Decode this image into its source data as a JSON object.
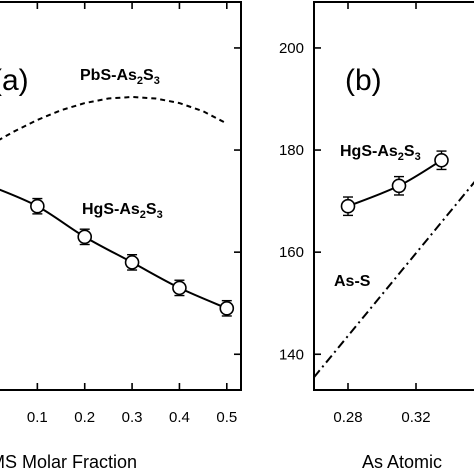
{
  "chart_data": [
    {
      "type": "line",
      "panel_label": "(a)",
      "xlabel": "MS Molar Fraction",
      "ylabel": "",
      "x_ticks": [
        0.1,
        0.2,
        0.3,
        0.4,
        0.5
      ],
      "x_tick_labels": [
        "0.1",
        "0.2",
        "0.3",
        "0.4",
        "0.5"
      ],
      "xlim": [
        0.0,
        0.53
      ],
      "ylim": [
        133,
        209
      ],
      "grid": false,
      "series": [
        {
          "name": "PbS-As2S3",
          "label_main": "PbS-As",
          "label_sub1": "2",
          "label_mid": "S",
          "label_sub2": "3",
          "style": "dashed",
          "markers": false,
          "x": [
            0.0,
            0.05,
            0.1,
            0.15,
            0.2,
            0.25,
            0.3,
            0.35,
            0.4,
            0.45,
            0.5
          ],
          "y": [
            181,
            183.6,
            185.9,
            187.8,
            189.2,
            190.1,
            190.4,
            190.1,
            189.2,
            187.6,
            185.2
          ]
        },
        {
          "name": "HgS-As2S3",
          "label_main": "HgS-As",
          "label_sub1": "2",
          "label_mid": "S",
          "label_sub2": "3",
          "style": "solid",
          "markers": true,
          "x": [
            0.0,
            0.1,
            0.2,
            0.3,
            0.4,
            0.5
          ],
          "y": [
            173,
            169,
            163,
            158,
            153,
            149
          ],
          "error": [
            1.5,
            1.5,
            1.5,
            1.5,
            1.5,
            1.5
          ]
        }
      ]
    },
    {
      "type": "line",
      "panel_label": "(b)",
      "xlabel": "As Atomic",
      "ylabel": "",
      "x_ticks": [
        0.28,
        0.32
      ],
      "x_tick_labels": [
        "0.28",
        "0.32"
      ],
      "y_ticks": [
        140,
        160,
        180,
        200
      ],
      "y_tick_labels": [
        "140",
        "160",
        "180",
        "200"
      ],
      "xlim": [
        0.26,
        0.36
      ],
      "ylim": [
        133,
        209
      ],
      "grid": false,
      "series": [
        {
          "name": "HgS-As2S3",
          "label_main": "HgS-As",
          "label_sub1": "2",
          "label_mid": "S",
          "label_sub2": "3",
          "style": "solid",
          "markers": true,
          "x": [
            0.28,
            0.31,
            0.335
          ],
          "y": [
            169,
            173,
            178
          ],
          "error": [
            1.8,
            1.8,
            1.8
          ]
        },
        {
          "name": "As-S",
          "label_main": "As-S",
          "style": "dashdot",
          "markers": false,
          "x": [
            0.26,
            0.36
          ],
          "y": [
            135.5,
            176
          ]
        }
      ]
    }
  ]
}
